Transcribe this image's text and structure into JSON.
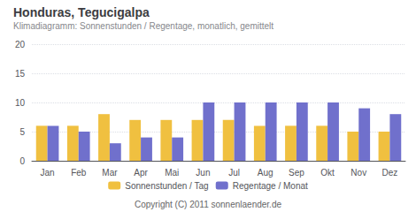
{
  "chart_data": {
    "type": "bar",
    "title": "Honduras, Tegucigalpa",
    "subtitle": "Klimadiagramm: Sonnenstunden / Regentage, monatlich, gemittelt",
    "categories": [
      "Jan",
      "Feb",
      "Mar",
      "Apr",
      "Mai",
      "Jun",
      "Jul",
      "Aug",
      "Sep",
      "Okt",
      "Nov",
      "Dez"
    ],
    "series": [
      {
        "name": "Sonnenstunden / Tag",
        "color": "#F0C040",
        "values": [
          6,
          6,
          8,
          7,
          7,
          7,
          7,
          6,
          6,
          6,
          5,
          5
        ]
      },
      {
        "name": "Regentage / Monat",
        "color": "#7070CC",
        "values": [
          6,
          5,
          3,
          4,
          4,
          10,
          10,
          10,
          10,
          10,
          9,
          8
        ]
      }
    ],
    "ylim": [
      0,
      20
    ],
    "yticks": [
      0,
      5,
      10,
      15,
      20
    ],
    "grid": true,
    "legend": "bottom",
    "annotations": [
      "Copyright (C) 2011 sonnenlaender.de"
    ]
  }
}
